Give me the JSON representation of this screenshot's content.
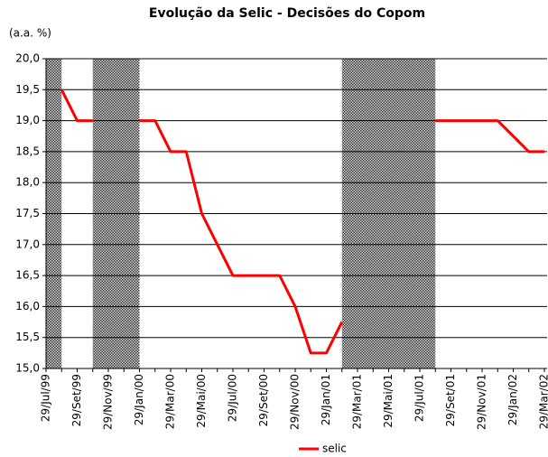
{
  "chart_data": {
    "type": "line",
    "title": "Evolução da Selic - Decisões do Copom",
    "y_axis_label": "(a.a. %)",
    "categories": [
      "29/Jul/99",
      null,
      "29/Set/99",
      null,
      "29/Nov/99",
      null,
      "29/Jan/00",
      null,
      "29/Mar/00",
      null,
      "29/Mai/00",
      null,
      "29/Jul/00",
      null,
      "29/Set/00",
      null,
      "29/Nov/00",
      null,
      "29/Jan/01",
      null,
      "29/Mar/01",
      null,
      "29/Mai/01",
      null,
      "29/Jul/01",
      null,
      "29/Set/01",
      null,
      "29/Nov/01",
      null,
      "29/Jan/02",
      null,
      "29/Mar/02"
    ],
    "series": [
      {
        "name": "selic",
        "color": "#ff0000",
        "values": [
          null,
          19.5,
          19,
          19,
          null,
          null,
          19,
          19,
          18.5,
          18.5,
          17.5,
          17,
          16.5,
          16.5,
          16.5,
          16.5,
          16,
          15.25,
          15.25,
          15.75,
          null,
          null,
          null,
          null,
          null,
          19,
          19,
          19,
          19,
          19,
          18.75,
          18.5,
          18.5
        ]
      }
    ],
    "ylim": [
      15,
      20
    ],
    "yticks": [
      {
        "value": 15,
        "label": "15,0"
      },
      {
        "value": 15.5,
        "label": "15,5"
      },
      {
        "value": 16,
        "label": "16,0"
      },
      {
        "value": 16.5,
        "label": "16,5"
      },
      {
        "value": 17,
        "label": "17,0"
      },
      {
        "value": 17.5,
        "label": "17,5"
      },
      {
        "value": 18,
        "label": "18,0"
      },
      {
        "value": 18.5,
        "label": "18,5"
      },
      {
        "value": 19,
        "label": "19,0"
      },
      {
        "value": 19.5,
        "label": "19,5"
      },
      {
        "value": 20,
        "label": "20,0"
      }
    ],
    "grid": true,
    "legend": "bottom"
  }
}
